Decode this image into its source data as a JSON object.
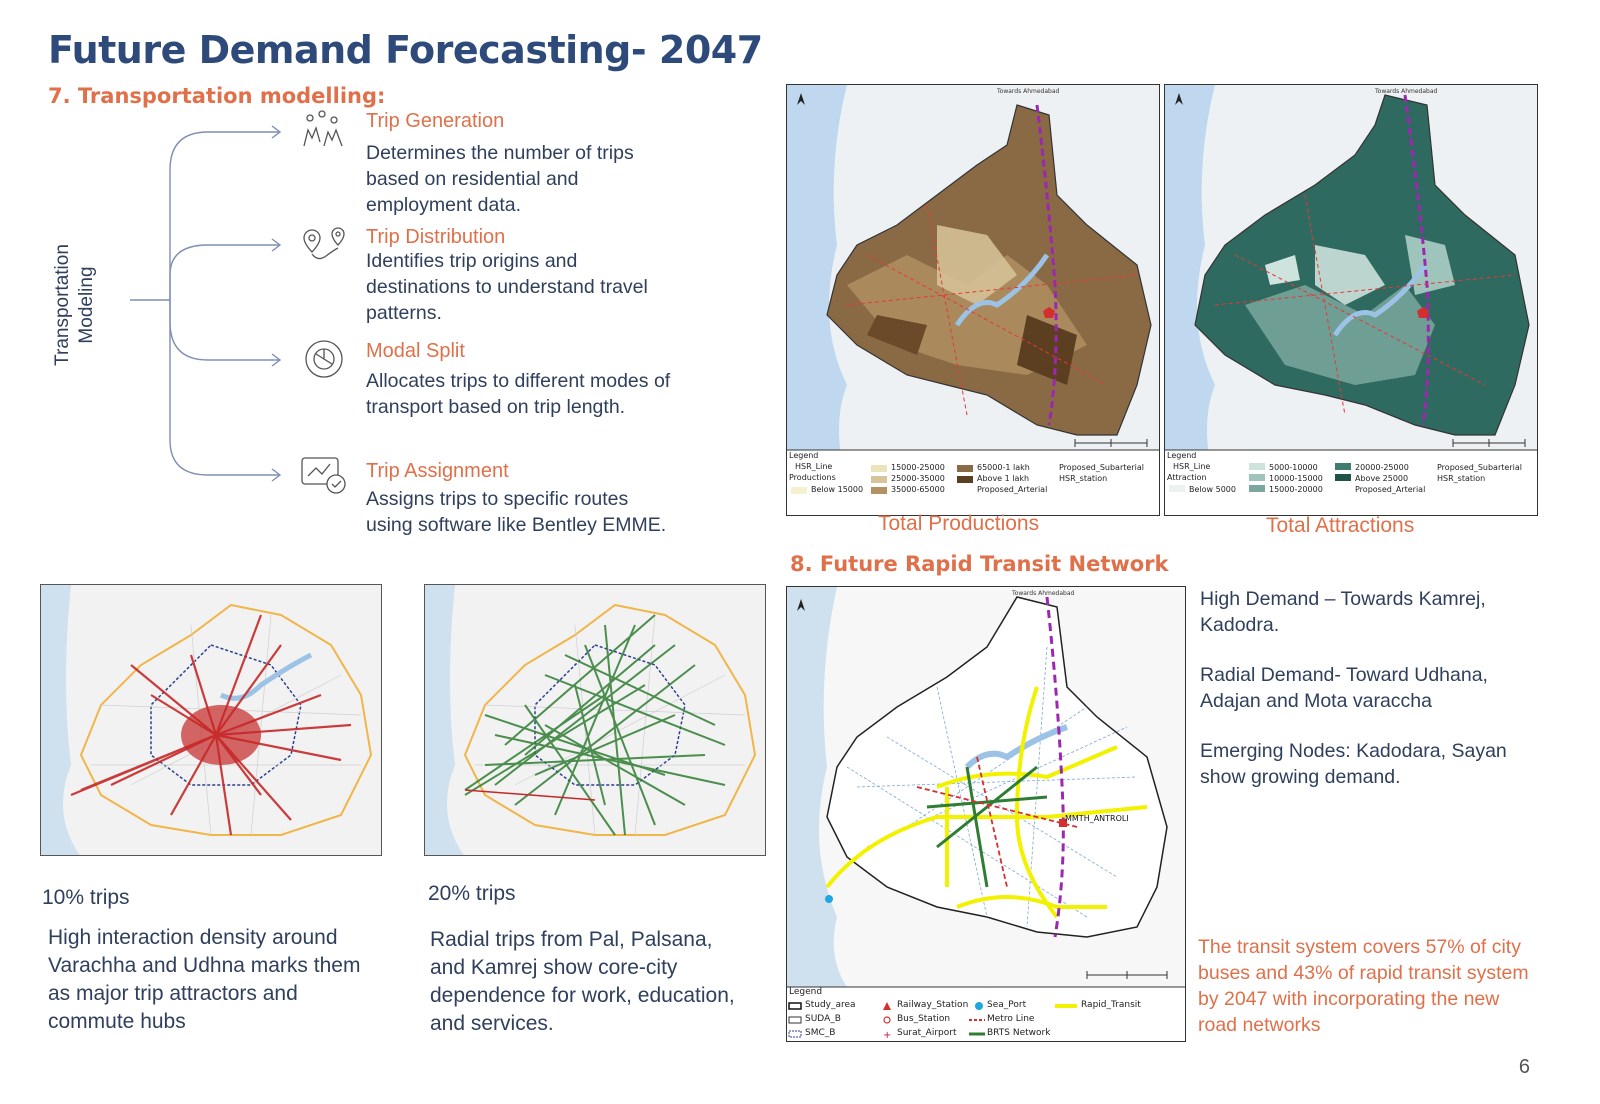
{
  "title": "Future Demand Forecasting- 2047",
  "section7": "7. Transportation modelling:",
  "modeling_label": [
    "Transportation",
    "Modeling"
  ],
  "steps": [
    {
      "title": "Trip Generation",
      "desc": "Determines the number of trips based on residential and employment data.",
      "icon": "people-icon"
    },
    {
      "title": "Trip Distribution",
      "desc": "Identifies trip origins and destinations to understand travel patterns.",
      "icon": "location-pins-icon"
    },
    {
      "title": "Modal Split",
      "desc": "Allocates trips to different modes of transport based on trip length.",
      "icon": "split-circle-icon"
    },
    {
      "title": "Trip Assignment",
      "desc": "Assigns trips to specific routes using software like Bentley EMME.",
      "icon": "route-check-icon"
    }
  ],
  "maps": {
    "productions": {
      "caption": "Total Productions",
      "top_label": "Towards Ahmedabad",
      "legend_title": "Legend",
      "legend": [
        "HSR_Line",
        "Productions",
        "Below 15000",
        "15000-25000",
        "25000-35000",
        "35000-65000",
        "65000-1 lakh",
        "Above 1 lakh",
        "Proposed_Arterial",
        "Proposed_Subarterial",
        "HSR_station"
      ]
    },
    "attractions": {
      "caption": "Total Attractions",
      "top_label": "Towards Ahmedabad",
      "legend_title": "Legend",
      "legend": [
        "HSR_Line",
        "Attraction",
        "Below 5000",
        "5000-10000",
        "10000-15000",
        "15000-20000",
        "20000-25000",
        "Above 25000",
        "Proposed_Arterial",
        "Proposed_Subarterial",
        "HSR_station"
      ]
    },
    "transit": {
      "top_label": "Towards Ahmedabad",
      "station_label": "MMTH_ANTROLI",
      "legend_title": "Legend",
      "legend": [
        "Study_area",
        "SUDA_B",
        "SMC_B",
        "Railway_Station",
        "Bus_Station",
        "Surat_Airport",
        "Sea_Port",
        "Metro Line",
        "BRTS Network",
        "Rapid_Transit"
      ]
    }
  },
  "section8": "8. Future Rapid Transit Network",
  "transit_points": [
    "High Demand – Towards Kamrej, Kadodra.",
    "Radial Demand- Toward Udhana, Adajan and Mota varaccha",
    "Emerging Nodes: Kadodara, Sayan show growing demand."
  ],
  "transit_summary": "The transit system covers 57% of city buses and 43% of rapid transit system by 2047 with incorporating the new road networks",
  "trips10": {
    "label": "10% trips",
    "desc": "High interaction density around Varachha and Udhna marks them as major trip attractors and commute hubs"
  },
  "trips20": {
    "label": "20% trips",
    "desc": "Radial trips from Pal, Palsana, and Kamrej show core-city dependence for work, education, and services."
  },
  "colors": {
    "accent": "#e0704a",
    "navy": "#2e4a7a",
    "red_lines": "#c62828",
    "green_lines": "#2e7d32",
    "transit_yellow": "#f2f200"
  },
  "page_number": "6"
}
